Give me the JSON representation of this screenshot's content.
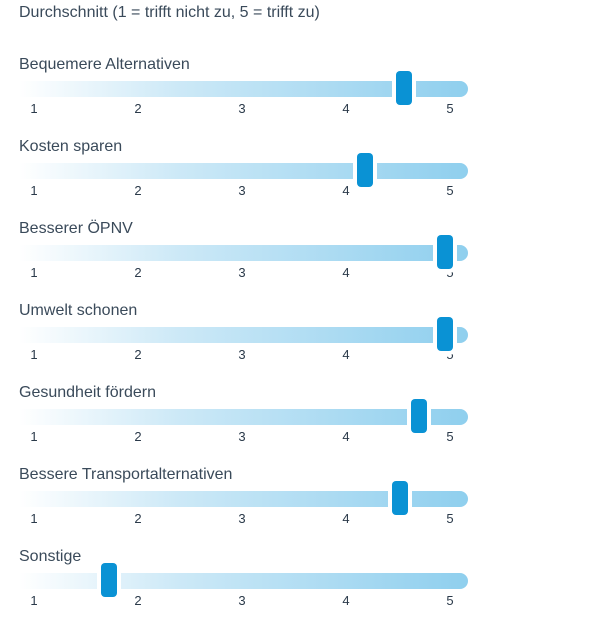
{
  "subtitle": "Durchschnitt (1 = trifft nicht zu, 5 = trifft zu)",
  "chart_data": {
    "type": "bar",
    "orientation": "horizontal-slider",
    "xlim": [
      1,
      5
    ],
    "ticks": [
      "1",
      "2",
      "3",
      "4",
      "5"
    ],
    "categories": [
      "Bequemere Alternativen",
      "Kosten sparen",
      "Besserer ÖPNV",
      "Umwelt schonen",
      "Gesundheit fördern",
      "Bessere Transportalternativen",
      "Sonstige"
    ],
    "values": [
      4.56,
      4.18,
      4.95,
      4.95,
      4.7,
      4.52,
      1.72
    ]
  },
  "colors": {
    "thumb": "#0a92d4",
    "track_end": "#8fcfee",
    "text": "#3a4a5a"
  }
}
